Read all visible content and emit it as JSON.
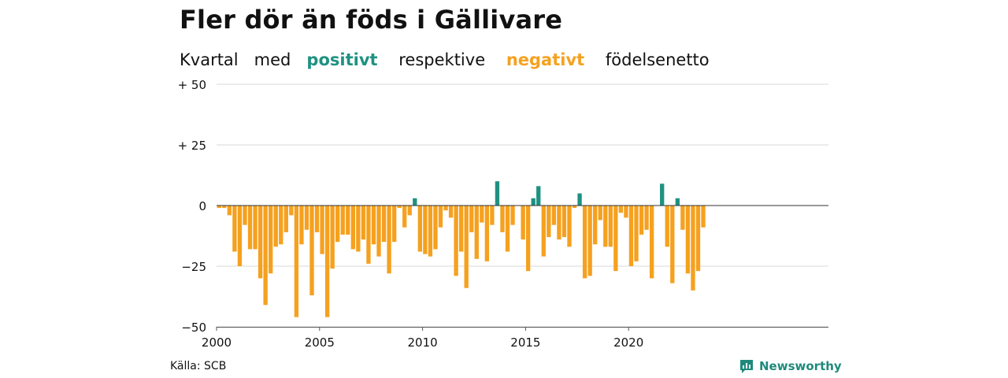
{
  "title": "Fler dör än föds i Gällivare",
  "subtitle": {
    "w1": "Kvartal",
    "w2": "med",
    "positive": "positivt",
    "w3": "respektive",
    "negative": "negativt",
    "w4": "födelsenetto"
  },
  "source": "Källa: SCB",
  "brand": "Newsworthy",
  "colors": {
    "positive": "#1f9182",
    "negative": "#f5a11f",
    "grid": "#d9d9d9",
    "brand": "#1f8a7c"
  },
  "chart_data": {
    "type": "bar",
    "x_start": 2000,
    "periods_per_year": 4,
    "ylim": [
      -50,
      50
    ],
    "grid": true,
    "y_ticks": [
      {
        "value": 50,
        "label": "+ 50"
      },
      {
        "value": 25,
        "label": "+ 25"
      },
      {
        "value": 0,
        "label": "0"
      },
      {
        "value": -25,
        "label": "−25"
      },
      {
        "value": -50,
        "label": "−50"
      }
    ],
    "x_ticks": [
      {
        "value": 2000,
        "label": "2000"
      },
      {
        "value": 2005,
        "label": "2005"
      },
      {
        "value": 2010,
        "label": "2010"
      },
      {
        "value": 2015,
        "label": "2015"
      },
      {
        "value": 2020,
        "label": "2020"
      }
    ],
    "values": [
      -1,
      -1,
      -4,
      -19,
      -25,
      -8,
      -18,
      -18,
      -30,
      -41,
      -28,
      -17,
      -16,
      -11,
      -4,
      -46,
      -16,
      -10,
      -37,
      -11,
      -20,
      -46,
      -26,
      -15,
      -12,
      -12,
      -18,
      -19,
      -14,
      -24,
      -16,
      -21,
      -15,
      -28,
      -15,
      -1,
      -9,
      -4,
      3,
      -19,
      -20,
      -21,
      -18,
      -9,
      -2,
      -5,
      -29,
      -19,
      -34,
      -11,
      -22,
      -7,
      -23,
      -8,
      10,
      -11,
      -19,
      -8,
      0,
      -14,
      -27,
      3,
      8,
      -21,
      -13,
      -8,
      -14,
      -13,
      -17,
      -1,
      5,
      -30,
      -29,
      -16,
      -6,
      -17,
      -17,
      -27,
      -3,
      -5,
      -25,
      -23,
      -12,
      -10,
      -30,
      0,
      9,
      -17,
      -32,
      3,
      -10,
      -28,
      -35,
      -27,
      -9
    ]
  }
}
